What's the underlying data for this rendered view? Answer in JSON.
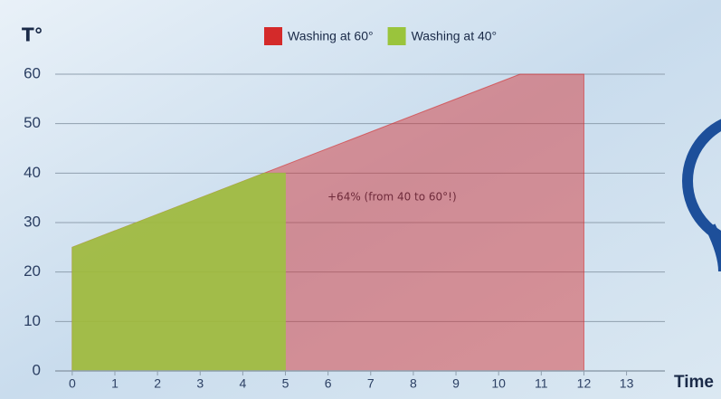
{
  "chart_data": {
    "type": "area",
    "y_label": "T°",
    "x_label": "Time",
    "annotation": "+64% (from 40 to 60°!)",
    "series": [
      {
        "name": "Washing at 60°",
        "color": "#d42a2a",
        "x": [
          0,
          10.5,
          12,
          12
        ],
        "values": [
          25,
          60,
          60,
          0
        ]
      },
      {
        "name": "Washing at 40°",
        "color": "#9ac43c",
        "x": [
          0,
          4.5,
          5,
          5
        ],
        "values": [
          25,
          40,
          40,
          0
        ]
      }
    ],
    "xlim": [
      -0.4,
      13.9
    ],
    "ylim": [
      0,
      60
    ],
    "xticks": [
      0,
      1,
      2,
      3,
      4,
      5,
      6,
      7,
      8,
      9,
      10,
      11,
      12,
      13
    ],
    "yticks": [
      0,
      10,
      20,
      30,
      40,
      50,
      60
    ],
    "grid": true
  }
}
